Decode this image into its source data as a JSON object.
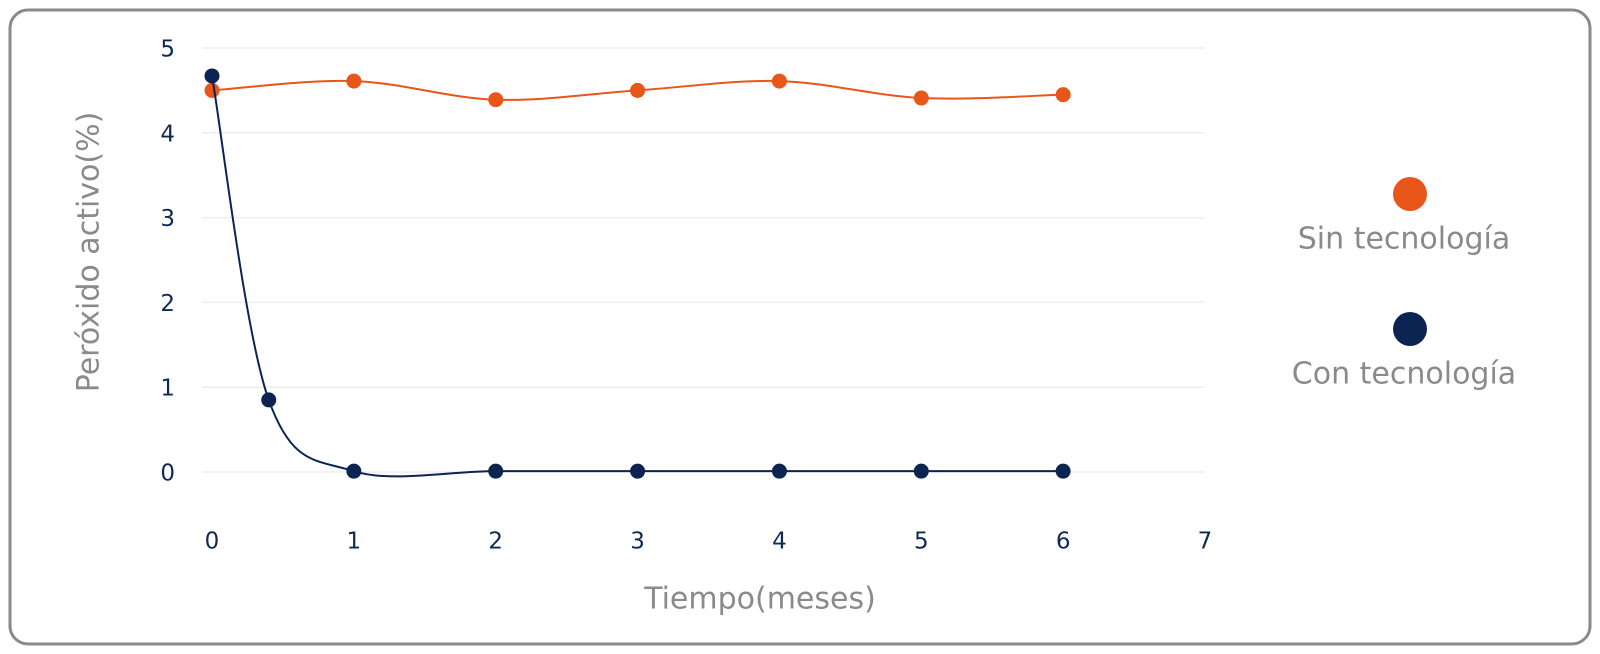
{
  "chart_data": {
    "type": "line",
    "x_label": "Tiempo(meses)",
    "y_label": "Peróxido activo(%)",
    "xlim": [
      0,
      7
    ],
    "xticks": [
      0,
      1,
      2,
      3,
      4,
      5,
      6,
      7
    ],
    "ylim": [
      0,
      5
    ],
    "yticks": [
      0,
      1,
      2,
      3,
      4,
      5
    ],
    "grid": true,
    "smooth": true,
    "legend": "right",
    "series": [
      {
        "name": "Sin tecnología",
        "color": "#e8561a",
        "x": [
          0,
          1,
          2,
          3,
          4,
          5,
          6
        ],
        "values": [
          4.5,
          4.61,
          4.39,
          4.5,
          4.61,
          4.41,
          4.45
        ]
      },
      {
        "name": "Con tecnología",
        "color": "#0b2451",
        "x": [
          0,
          0.4,
          1,
          2,
          3,
          4,
          5,
          6
        ],
        "values": [
          4.67,
          0.85,
          0.01,
          0.01,
          0.01,
          0.01,
          0.01,
          0.01
        ]
      }
    ]
  }
}
